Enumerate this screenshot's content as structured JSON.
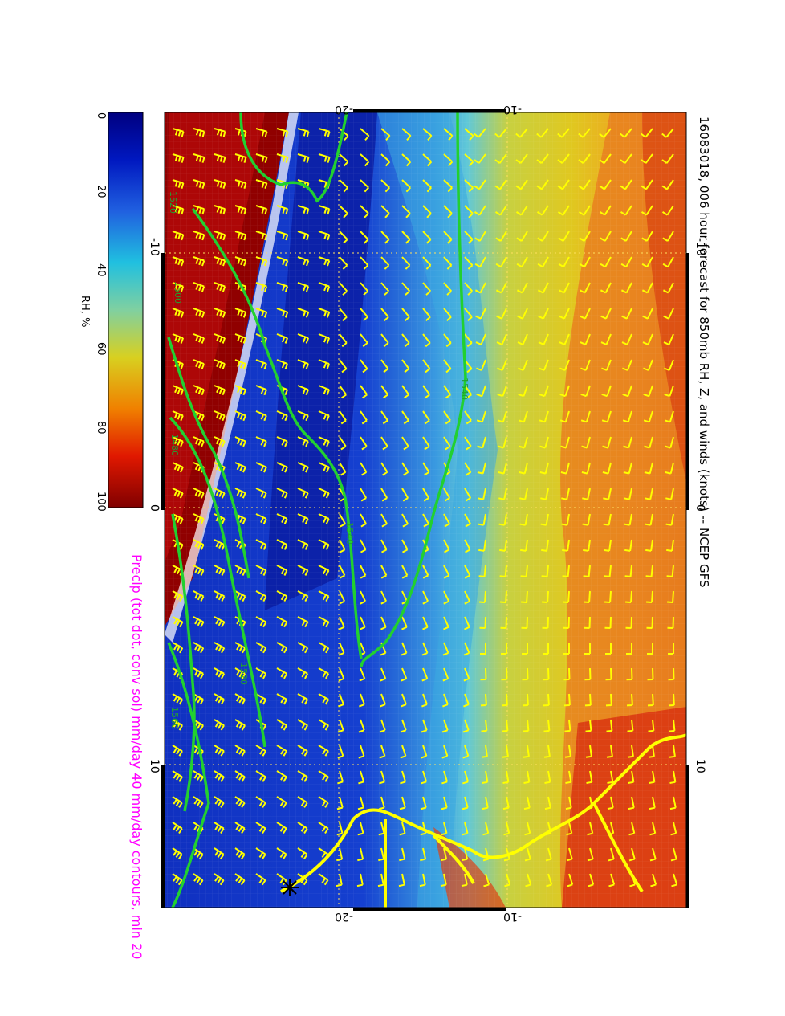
{
  "title": "16083018, 006 hour forecast for 850mb RH, Z, and winds (knots) -- NCEP GFS",
  "subtitle": "Precip (tot dot, conv sol) mm/day 40 mm/day contours, min 20",
  "colorbar": {
    "label": "RH, %",
    "ticks": [
      "0",
      "20",
      "40",
      "60",
      "80",
      "100"
    ]
  },
  "axes": {
    "top_lat_labels": [
      "-20",
      "-10"
    ],
    "bottom_lat_labels": [
      "-20",
      "-10"
    ],
    "left_lon_labels": [
      "-10",
      "0",
      "10"
    ],
    "right_lon_labels": [
      "-10",
      "0",
      "10"
    ]
  },
  "contours": {
    "labels": [
      "1480",
      "1500",
      "1520",
      "1540",
      "1560",
      "1540",
      "1520"
    ]
  },
  "colors": {
    "dry": "#000080",
    "mid": "#21c6c6",
    "moist": "#e0d020",
    "saturated": "#800000",
    "wind_barbs": "#ffff00",
    "height_contours": "#22d030",
    "coastline": "#ffff00",
    "subtitle": "#ff00ff"
  }
}
